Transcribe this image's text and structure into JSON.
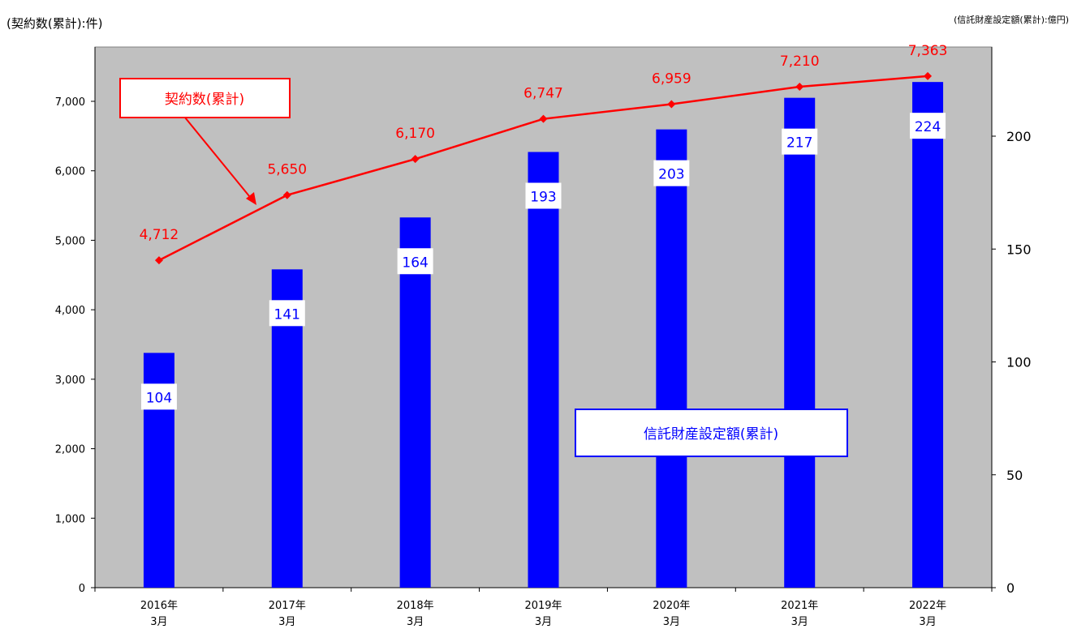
{
  "units": {
    "left": "(契約数(累計):件)",
    "right": "(信託財産設定額(累計):億円)"
  },
  "chart_data": {
    "type": "bar",
    "categories": [
      [
        "2016年",
        "3月"
      ],
      [
        "2017年",
        "3月"
      ],
      [
        "2018年",
        "3月"
      ],
      [
        "2019年",
        "3月"
      ],
      [
        "2020年",
        "3月"
      ],
      [
        "2021年",
        "3月"
      ],
      [
        "2022年",
        "3月"
      ]
    ],
    "series": [
      {
        "name": "信託財産設定額(累計)",
        "type": "bar",
        "axis": "right",
        "color": "#0000ff",
        "values": [
          104,
          141,
          164,
          193,
          203,
          217,
          224
        ],
        "labels": [
          "104",
          "141",
          "164",
          "193",
          "203",
          "217",
          "224"
        ]
      },
      {
        "name": "契約数(累計)",
        "type": "line",
        "axis": "left",
        "color": "#ff0000",
        "values": [
          4712,
          5650,
          6170,
          6747,
          6959,
          7210,
          7363
        ],
        "labels": [
          "4,712",
          "5,650",
          "6,170",
          "6,747",
          "6,959",
          "7,210",
          "7,363"
        ]
      }
    ],
    "y_left": {
      "min": 0,
      "max": 7000,
      "ticks": [
        0,
        1000,
        2000,
        3000,
        4000,
        5000,
        6000,
        7000
      ],
      "tick_labels": [
        "0",
        "1,000",
        "2,000",
        "3,000",
        "4,000",
        "5,000",
        "6,000",
        "7,000"
      ]
    },
    "y_right": {
      "min": 0,
      "max": 200,
      "ticks": [
        0,
        50,
        100,
        150,
        200
      ],
      "tick_labels": [
        "0",
        "50",
        "100",
        "150",
        "200"
      ]
    },
    "plot_background": "#c0c0c0",
    "grid": false,
    "legend": "inline-callouts"
  }
}
